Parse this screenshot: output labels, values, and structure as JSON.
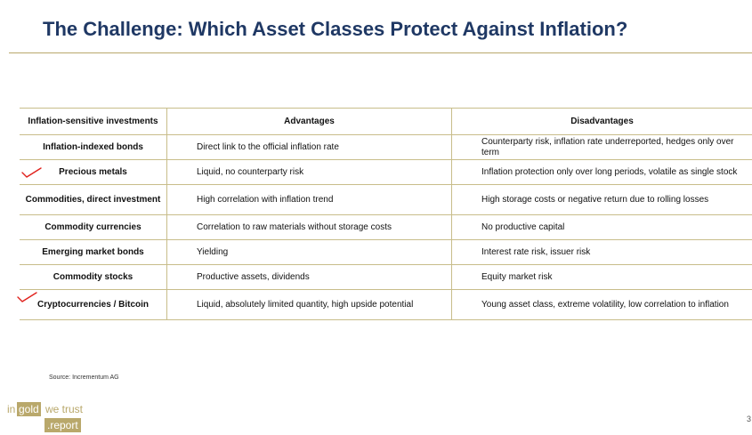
{
  "slide": {
    "title": "The Challenge: Which Asset Classes Protect Against Inflation?",
    "source": "Source: Incrementum AG"
  },
  "table": {
    "headers": [
      "Inflation-sensitive investments",
      "Advantages",
      "Disadvantages"
    ],
    "rows": [
      {
        "investment": "Inflation-indexed bonds",
        "advantages": "Direct link to the official inflation rate",
        "disadvantages": "Counterparty risk, inflation rate underreported, hedges only over term",
        "checked": false
      },
      {
        "investment": "Precious metals",
        "advantages": "Liquid, no counterparty risk",
        "disadvantages": "Inflation protection only over long periods, volatile as single stock",
        "checked": true
      },
      {
        "investment": "Commodities, direct investment",
        "advantages": "High correlation with inflation trend",
        "disadvantages": "High storage costs or negative return due to rolling losses",
        "checked": false
      },
      {
        "investment": "Commodity currencies",
        "advantages": "Correlation to raw materials without storage costs",
        "disadvantages": "No productive capital",
        "checked": false
      },
      {
        "investment": "Emerging market bonds",
        "advantages": "Yielding",
        "disadvantages": "Interest rate risk, issuer risk",
        "checked": false
      },
      {
        "investment": "Commodity stocks",
        "advantages": "Productive assets, dividends",
        "disadvantages": "Equity market risk",
        "checked": false
      },
      {
        "investment": "Cryptocurrencies / Bitcoin",
        "advantages": "Liquid, absolutely limited quantity, high upside potential",
        "disadvantages": "Young asset class, extreme volatility, low correlation to inflation",
        "checked": true
      }
    ]
  },
  "annotations": {
    "checkmark_icon": "red-checkmark-icon",
    "checkmark_color": "#e0201b"
  },
  "logo": {
    "word_in": "in",
    "word_gold": "gold",
    "word_we_trust": "we trust",
    "word_report": ".report",
    "color": "#b9a86b"
  },
  "edge_glyph": "3",
  "colors": {
    "title": "#1f3864",
    "rule": "#b9a86b",
    "grid": "#c8bd8a"
  }
}
